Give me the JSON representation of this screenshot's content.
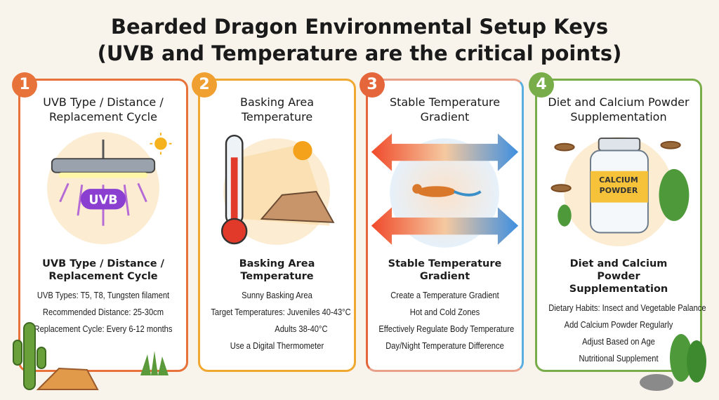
{
  "title": {
    "line1": "Bearded Dragon Environmental Setup Keys",
    "line2": "(UVB and Temperature are the critical points)"
  },
  "cards": [
    {
      "number": "1",
      "title": "UVB Type / Distance / Replacement Cycle",
      "illustration_label": "UVB",
      "subtitle": "UVB Type / Distance / Replacement Cycle",
      "items": [
        "UVB Types: T5, T8, Tungsten filament",
        "Recommended Distance: 25-30cm",
        "Replacement Cycle: Every 6-12 months"
      ],
      "color": "#e8733a"
    },
    {
      "number": "2",
      "title": "Basking Area Temperature",
      "subtitle": "Basking Area Temperature",
      "items": [
        "Sunny Basking Area",
        "Target Temperatures: Juveniles 40-43°C",
        "Adults 38-40°C",
        "Use a Digital Thermometer"
      ],
      "color": "#f0a830"
    },
    {
      "number": "3",
      "title": "Stable Temperature Gradient",
      "subtitle": "Stable Temperature Gradient",
      "items": [
        "Create a Temperature Gradient",
        "Hot and Cold Zones",
        "Effectively Regulate Body Temperature",
        "Day/Night Temperature Difference"
      ],
      "color": "#e4663a",
      "color2": "#5aaee0"
    },
    {
      "number": "4",
      "title": "Diet and Calcium Powder Supplementation",
      "illustration_label": "CALCIUM POWDER",
      "subtitle": "Diet and Calcium Powder Supplementation",
      "items": [
        "Dietary Habits: Insect and Vegetable Palance",
        "Add Calcium Powder Regularly",
        "Adjust Based on Age",
        "Nutritional Supplement"
      ],
      "color": "#78ad4a"
    }
  ]
}
